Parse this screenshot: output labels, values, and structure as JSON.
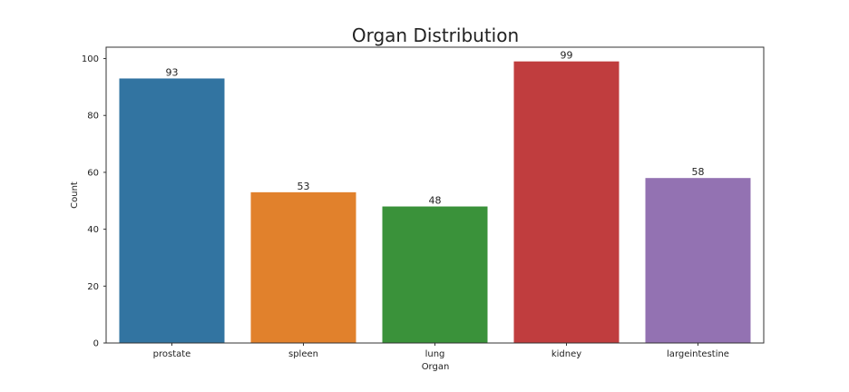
{
  "chart_data": {
    "type": "bar",
    "title": "Organ Distribution",
    "xlabel": "Organ",
    "ylabel": "Count",
    "categories": [
      "prostate",
      "spleen",
      "lung",
      "kidney",
      "largeintestine"
    ],
    "values": [
      93,
      53,
      48,
      99,
      58
    ],
    "colors": [
      "#3274a1",
      "#e1812c",
      "#3a923a",
      "#c03d3e",
      "#9372b2"
    ],
    "ylim": [
      0,
      104
    ],
    "yticks": [
      0,
      20,
      40,
      60,
      80,
      100
    ],
    "grid": false,
    "legend": "none"
  }
}
